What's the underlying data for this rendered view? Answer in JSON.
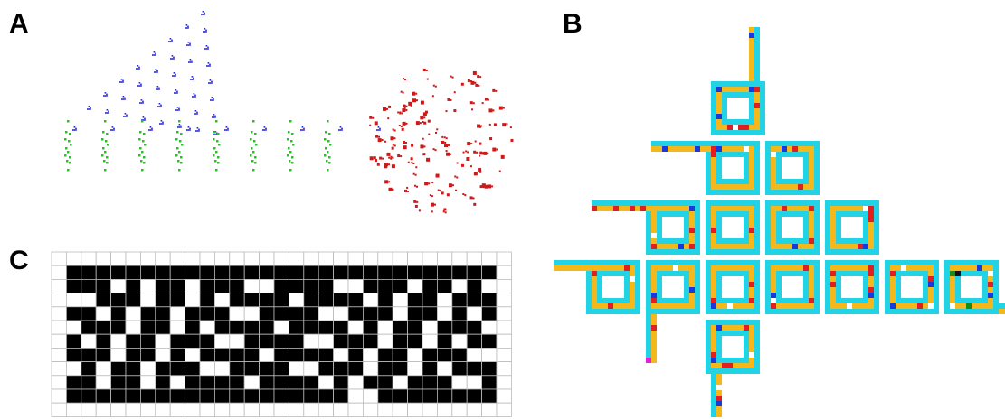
{
  "panels": {
    "a": {
      "label": "A"
    },
    "b": {
      "label": "B"
    },
    "c": {
      "label": "C"
    }
  },
  "colors": {
    "gliders": "#2a2ad0",
    "oscillators": "#22c422",
    "debris": "#d01818",
    "loop_outline": "#22d3e6",
    "loop_fill": "#f5b81c",
    "cell_red": "#e02020",
    "cell_blue": "#1a3ad8",
    "cell_white": "#ffffff",
    "cell_green": "#1a8a1a",
    "cell_black": "#111111",
    "cell_magenta": "#e020e0",
    "grid_line": "#bbbbbb",
    "cell_on": "#000000"
  }
}
